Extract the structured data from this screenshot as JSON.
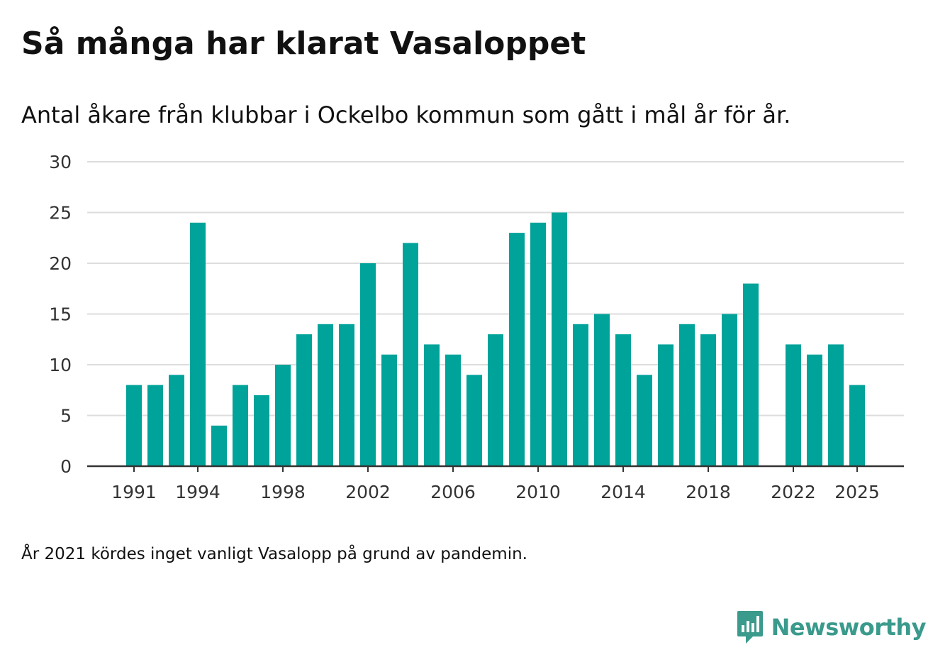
{
  "colors": {
    "bar": "#00a39a",
    "brand": "#3a9a8c",
    "grid": "#dddddd",
    "axis": "#333333",
    "text": "#111111"
  },
  "chart_data": {
    "type": "bar",
    "title": "Så många har klarat Vasaloppet",
    "subtitle": "Antal åkare från klubbar i Ockelbo kommun som gått i mål år för år.",
    "xlabel": "",
    "ylabel": "",
    "ylim": [
      0,
      30
    ],
    "yticks": [
      0,
      5,
      10,
      15,
      20,
      25,
      30
    ],
    "xtick_labels": [
      "1991",
      "1994",
      "1998",
      "2002",
      "2006",
      "2010",
      "2014",
      "2018",
      "2022",
      "2025"
    ],
    "categories": [
      1991,
      1992,
      1993,
      1994,
      1995,
      1996,
      1997,
      1998,
      1999,
      2000,
      2001,
      2002,
      2003,
      2004,
      2005,
      2006,
      2007,
      2008,
      2009,
      2010,
      2011,
      2012,
      2013,
      2014,
      2015,
      2016,
      2017,
      2018,
      2019,
      2020,
      2021,
      2022,
      2023,
      2024,
      2025
    ],
    "values": [
      8,
      8,
      9,
      24,
      4,
      8,
      7,
      10,
      13,
      14,
      14,
      20,
      11,
      22,
      12,
      11,
      9,
      13,
      23,
      24,
      25,
      14,
      15,
      13,
      9,
      12,
      14,
      13,
      15,
      18,
      null,
      12,
      11,
      12,
      8
    ],
    "grid": true,
    "legend": "none",
    "note": "År 2021 kördes inget vanligt Vasalopp på grund av pandemin."
  },
  "brand": {
    "name": "Newsworthy",
    "logo_icon": "bar-chart-speech-bubble-icon"
  }
}
